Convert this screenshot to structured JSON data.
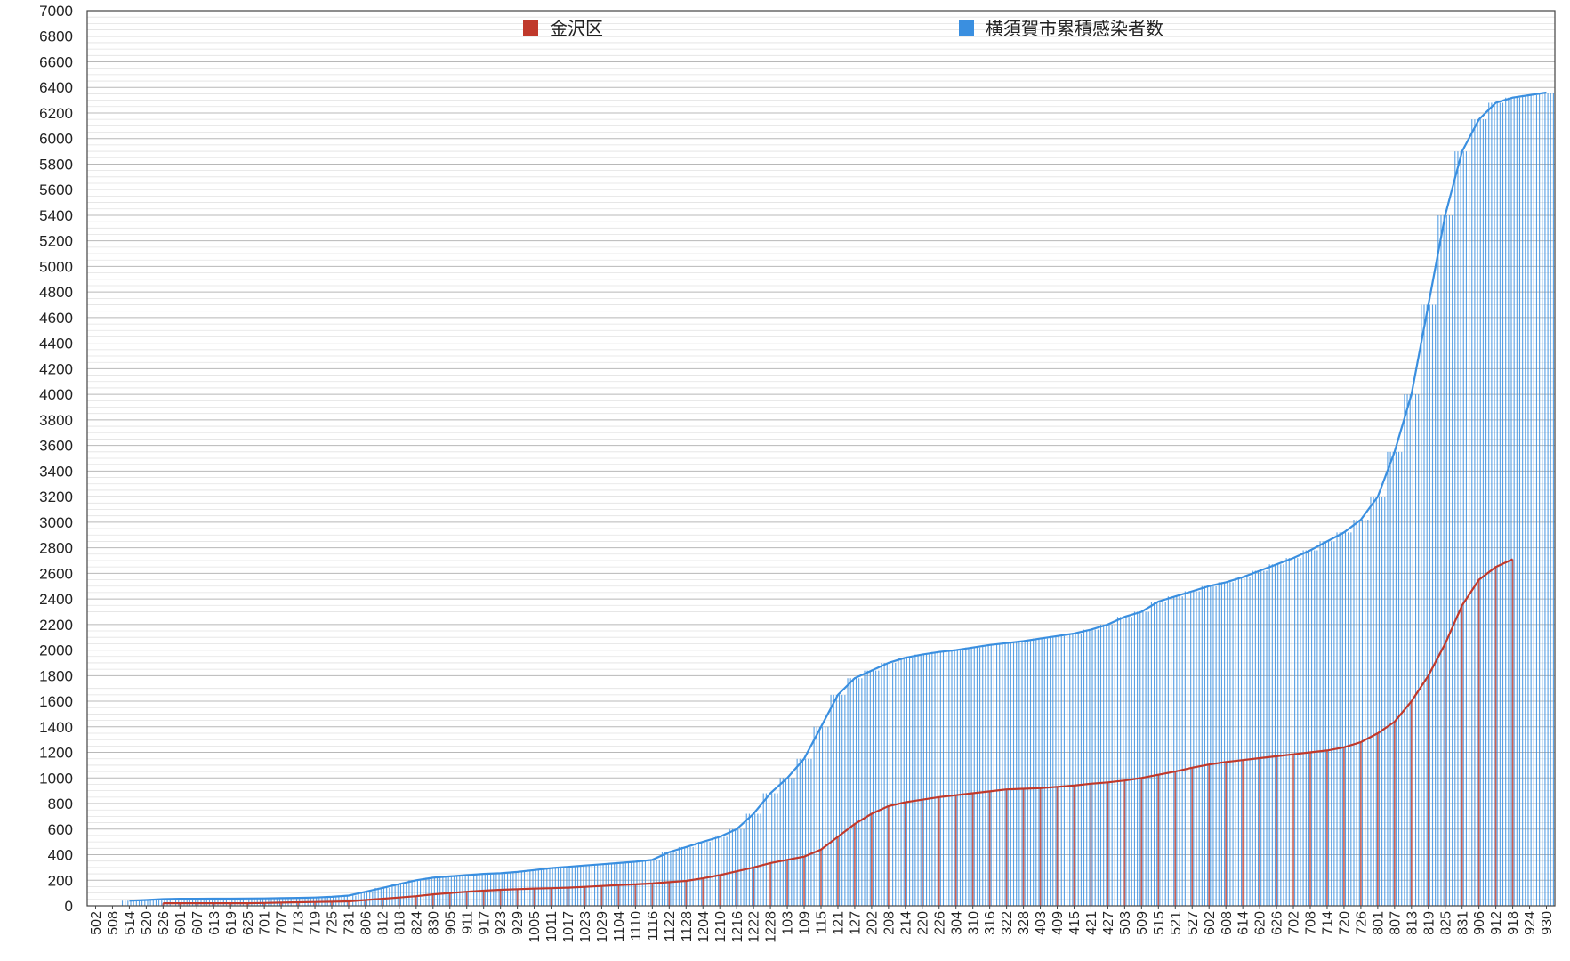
{
  "chart_data": {
    "type": "bar",
    "legend_position": "top",
    "grid": true,
    "ylim": [
      0,
      7000
    ],
    "yticks": [
      0,
      200,
      400,
      600,
      800,
      1000,
      1200,
      1400,
      1600,
      1800,
      2000,
      2200,
      2400,
      2600,
      2800,
      3000,
      3200,
      3400,
      3600,
      3800,
      4000,
      4200,
      4400,
      4600,
      4800,
      5000,
      5200,
      5400,
      5600,
      5800,
      6000,
      6200,
      6400,
      6600,
      6800,
      7000
    ],
    "xtick_labels": [
      "502",
      "508",
      "514",
      "520",
      "526",
      "601",
      "607",
      "613",
      "619",
      "625",
      "701",
      "707",
      "713",
      "719",
      "725",
      "731",
      "806",
      "812",
      "818",
      "824",
      "830",
      "905",
      "911",
      "917",
      "923",
      "929",
      "1005",
      "1011",
      "1017",
      "1023",
      "1029",
      "1104",
      "1110",
      "1116",
      "1122",
      "1128",
      "1204",
      "1210",
      "1216",
      "1222",
      "1228",
      "103",
      "109",
      "115",
      "121",
      "127",
      "202",
      "208",
      "214",
      "220",
      "226",
      "304",
      "310",
      "316",
      "322",
      "328",
      "403",
      "409",
      "415",
      "421",
      "427",
      "503",
      "509",
      "515",
      "521",
      "527",
      "602",
      "608",
      "614",
      "620",
      "626",
      "702",
      "708",
      "714",
      "720",
      "726",
      "801",
      "807",
      "813",
      "819",
      "825",
      "831",
      "906",
      "912",
      "918",
      "924",
      "930"
    ],
    "series": [
      {
        "name": "金沢区",
        "color": "#c0392b",
        "values": [
          null,
          null,
          null,
          null,
          20,
          20,
          20,
          20,
          20,
          20,
          22,
          25,
          28,
          30,
          32,
          35,
          45,
          55,
          65,
          75,
          90,
          100,
          110,
          118,
          125,
          130,
          135,
          138,
          142,
          148,
          155,
          162,
          168,
          175,
          185,
          195,
          215,
          240,
          270,
          300,
          335,
          360,
          385,
          440,
          540,
          640,
          720,
          780,
          810,
          830,
          850,
          865,
          880,
          895,
          910,
          915,
          920,
          930,
          940,
          955,
          965,
          980,
          1000,
          1025,
          1050,
          1080,
          1105,
          1125,
          1140,
          1155,
          1170,
          1185,
          1200,
          1215,
          1240,
          1280,
          1350,
          1440,
          1600,
          1800,
          2050,
          2350,
          2550,
          2650,
          2710,
          null,
          null
        ]
      },
      {
        "name": "横須賀市累積感染者数",
        "color": "#3a8fe0",
        "values": [
          null,
          null,
          40,
          45,
          52,
          55,
          55,
          56,
          56,
          57,
          58,
          60,
          62,
          65,
          70,
          80,
          110,
          140,
          170,
          200,
          220,
          230,
          240,
          250,
          255,
          265,
          280,
          295,
          305,
          315,
          325,
          335,
          345,
          360,
          420,
          460,
          500,
          540,
          600,
          720,
          880,
          1000,
          1150,
          1400,
          1650,
          1780,
          1840,
          1900,
          1940,
          1965,
          1985,
          2000,
          2020,
          2040,
          2055,
          2070,
          2090,
          2110,
          2130,
          2160,
          2200,
          2260,
          2300,
          2380,
          2420,
          2460,
          2500,
          2530,
          2570,
          2620,
          2670,
          2720,
          2780,
          2850,
          2920,
          3020,
          3200,
          3550,
          4000,
          4700,
          5400,
          5900,
          6150,
          6280,
          6320,
          6340,
          6360
        ]
      }
    ]
  }
}
